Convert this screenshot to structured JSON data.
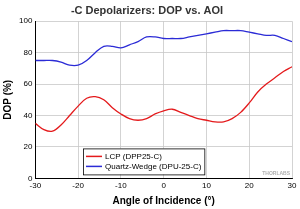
{
  "chart_data": {
    "type": "line",
    "title": "-C Depolarizers: DOP vs. AOI",
    "x_label": "Angle of Incidence (°)",
    "y_label": "DOP (%)",
    "annotation": "THORLABS",
    "x": [
      -30,
      -28,
      -26,
      -24,
      -22,
      -20,
      -18,
      -16,
      -14,
      -12,
      -10,
      -8,
      -6,
      -4,
      -2,
      0,
      2,
      4,
      6,
      8,
      10,
      12,
      14,
      16,
      18,
      20,
      22,
      24,
      26,
      28,
      30
    ],
    "series": [
      {
        "name": "LCP (DPP25-C)",
        "color": "#e41a1c",
        "values": [
          35,
          31,
          30,
          34,
          40,
          46,
          51,
          52,
          50,
          45,
          41,
          38,
          37,
          38,
          41,
          43,
          44,
          42,
          40,
          38,
          37,
          36,
          36,
          38,
          42,
          48,
          55,
          60,
          64,
          68,
          71
        ]
      },
      {
        "name": "Quartz-Wedge (DPU-25-C)",
        "color": "#2b2bd6",
        "values": [
          75,
          75,
          75,
          74,
          72,
          72,
          75,
          80,
          84,
          84,
          83,
          85,
          87,
          90,
          90,
          89,
          89,
          89,
          90,
          91,
          92,
          93,
          94,
          94,
          94,
          93,
          92,
          91,
          91,
          89,
          87
        ]
      }
    ],
    "xlim": [
      -30,
      30
    ],
    "xticks": [
      -30,
      -20,
      -10,
      0,
      10,
      20,
      30
    ],
    "ylim": [
      0,
      100
    ],
    "yticks": [
      0,
      20,
      40,
      60,
      80,
      100
    ],
    "grid": true,
    "legend": "lower center"
  }
}
